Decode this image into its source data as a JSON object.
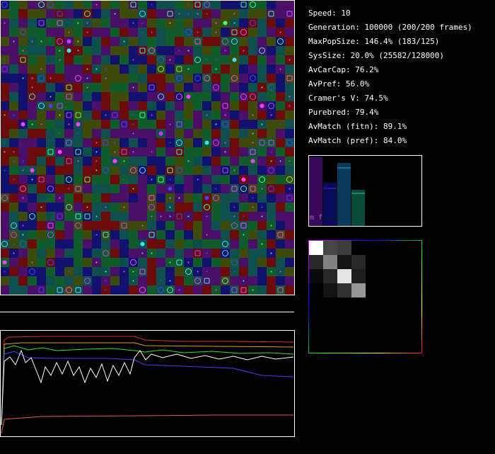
{
  "stats": [
    "Speed: 10",
    "Generation: 100000 (200/200 frames)",
    "MaxPopSize: 146.4% (183/125)",
    "SysSize: 20.0% (25582/128000)",
    "AvCarCap: 76.2%",
    "AvPref: 56.0%",
    "Cramer's V: 74.5%",
    "Purebred: 79.4%",
    "AvMatch (fitn): 89.1%",
    "AvMatch (pref): 84.0%"
  ],
  "bar_panel": {
    "label": "m f"
  }
}
